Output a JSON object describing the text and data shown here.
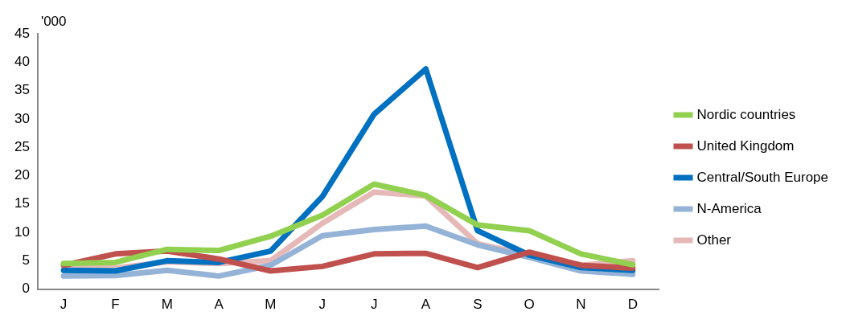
{
  "chart_data": {
    "type": "line",
    "ylabel": "'000",
    "categories": [
      "J",
      "F",
      "M",
      "A",
      "M",
      "J",
      "J",
      "A",
      "S",
      "O",
      "N",
      "D"
    ],
    "series": [
      {
        "name": "Nordic countries",
        "color": "#92d050",
        "values": [
          4.5,
          4.7,
          7,
          6.8,
          9.3,
          13,
          18.5,
          16.5,
          11.3,
          10.3,
          6.2,
          4.3
        ]
      },
      {
        "name": "United Kingdom",
        "color": "#c0504d",
        "values": [
          4.2,
          6.2,
          6.7,
          5.3,
          3.2,
          4,
          6.2,
          6.3,
          3.8,
          6.5,
          4.2,
          3.7
        ]
      },
      {
        "name": "Central/South Europe",
        "color": "#0070c0",
        "values": [
          3.3,
          3.2,
          5,
          4.7,
          6.7,
          16.3,
          30.8,
          38.8,
          10.3,
          6,
          3.8,
          3.3
        ]
      },
      {
        "name": "N-America",
        "color": "#95b3d7",
        "values": [
          2.3,
          2.4,
          3.3,
          2.3,
          4.2,
          9.4,
          10.5,
          11.1,
          7.8,
          5.6,
          3.2,
          2.6
        ]
      },
      {
        "name": "Other",
        "color": "#e6b9b8",
        "values": [
          4.2,
          3.7,
          4.8,
          4.5,
          5,
          11.6,
          17.1,
          16.4,
          8,
          6,
          4.2,
          5
        ]
      }
    ],
    "ylim": [
      0,
      45
    ],
    "yticks": [
      0,
      5,
      10,
      15,
      20,
      25,
      30,
      35,
      40,
      45
    ],
    "grid": false,
    "legend": "right",
    "marker": "none",
    "line_style": "solid"
  }
}
